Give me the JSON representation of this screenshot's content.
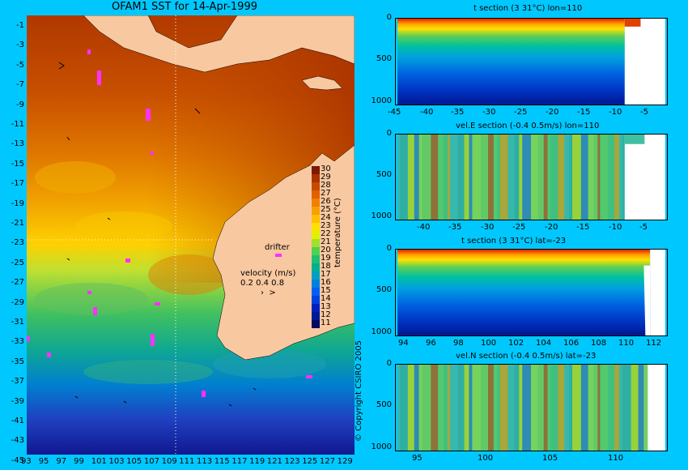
{
  "map": {
    "title": "OFAM1 SST for 14-Apr-1999",
    "lat_labels": [
      "-1",
      "-3",
      "-5",
      "-7",
      "-9",
      "-11",
      "-13",
      "-15",
      "-17",
      "-19",
      "-21",
      "-23",
      "-25",
      "-27",
      "-29",
      "-31",
      "-33",
      "-35",
      "-37",
      "-39",
      "-41",
      "-43",
      "-45"
    ],
    "lon_labels": [
      "93",
      "95",
      "97",
      "99",
      "101",
      "103",
      "105",
      "107",
      "109",
      "111",
      "113",
      "115",
      "117",
      "119",
      "121",
      "123",
      "125",
      "127",
      "129"
    ],
    "colorbar": {
      "ticks": [
        "30",
        "29",
        "28",
        "27",
        "26",
        "25",
        "24",
        "23",
        "22",
        "21",
        "20",
        "19",
        "18",
        "17",
        "16",
        "15",
        "14",
        "13",
        "12",
        "11"
      ],
      "label": "temperature (°C)",
      "colors": [
        "#7a1a00",
        "#a83200",
        "#c84a00",
        "#e06000",
        "#f08000",
        "#f8a000",
        "#ffc000",
        "#ffe000",
        "#e0f000",
        "#a0e030",
        "#50d050",
        "#20c070",
        "#00b090",
        "#00a0c0",
        "#0080e0",
        "#0060f0",
        "#0040e0",
        "#0020c0",
        "#001890",
        "#000860"
      ]
    },
    "drifter_label": "drifter",
    "velocity_label": "velocity (m/s)",
    "velocity_scale": "0.2 0.4 0.8",
    "copyright": "© Copyright CSIRO 2005"
  },
  "sections": [
    {
      "title": "t section (3      31°C) lon=110",
      "x_ticks": [
        "-45",
        "-40",
        "-35",
        "-30",
        "-25",
        "-20",
        "-15",
        "-10",
        "-5"
      ],
      "y_ticks": [
        "0",
        "500",
        "1000"
      ]
    },
    {
      "title": "vel.E section (-0.4      0.5m/s) lon=110",
      "x_ticks": [
        "-40",
        "-35",
        "-30",
        "-25",
        "-20",
        "-15",
        "-10",
        "-5"
      ],
      "y_ticks": [
        "0",
        "500",
        "1000"
      ]
    },
    {
      "title": "t section (3      31°C) lat=-23",
      "x_ticks": [
        "94",
        "96",
        "98",
        "100",
        "102",
        "104",
        "106",
        "108",
        "110",
        "112"
      ],
      "y_ticks": [
        "0",
        "500",
        "1000"
      ]
    },
    {
      "title": "vel.N section (-0.4      0.5m/s) lat=-23",
      "x_ticks": [
        "95",
        "100",
        "105",
        "110"
      ],
      "y_ticks": [
        "0",
        "500",
        "1000"
      ]
    }
  ]
}
